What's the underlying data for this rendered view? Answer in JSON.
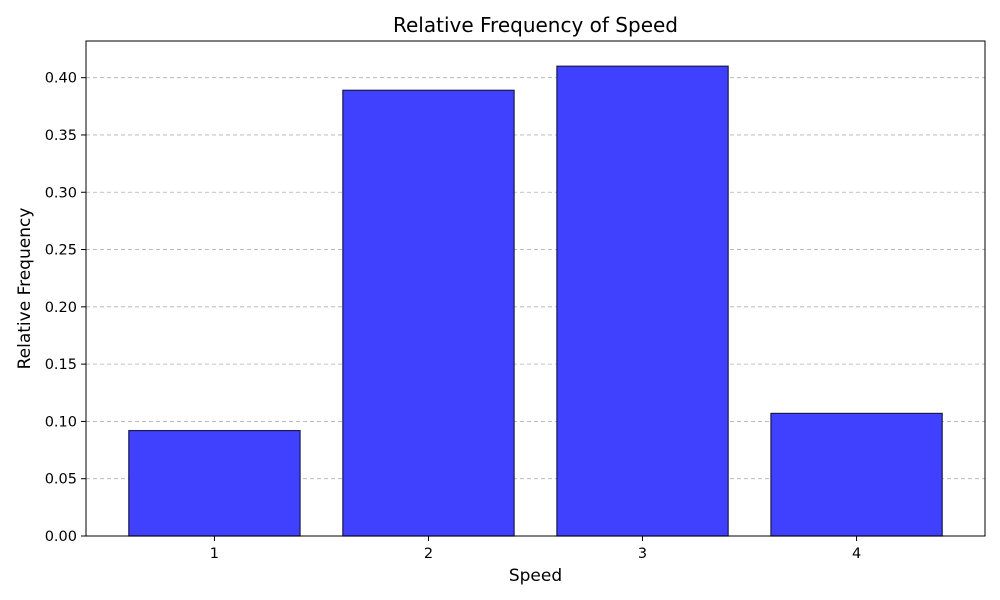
{
  "chart_data": {
    "type": "bar",
    "title": "Relative Frequency of Speed",
    "xlabel": "Speed",
    "ylabel": "Relative Frequency",
    "categories": [
      "1",
      "2",
      "3",
      "4"
    ],
    "values": [
      0.092,
      0.389,
      0.41,
      0.107
    ],
    "ylim": [
      0,
      0.432
    ],
    "yticks": [
      0.0,
      0.05,
      0.1,
      0.15,
      0.2,
      0.25,
      0.3,
      0.35,
      0.4
    ],
    "ytick_labels": [
      "0.00",
      "0.05",
      "0.10",
      "0.15",
      "0.20",
      "0.25",
      "0.30",
      "0.35",
      "0.40"
    ],
    "grid": "y-dashed",
    "bar_color": "#4040ff",
    "bar_edge_color": "#1a1a4d"
  }
}
